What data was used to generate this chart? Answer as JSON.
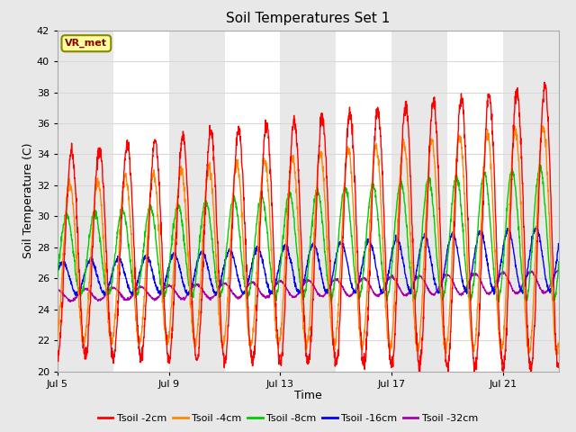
{
  "title": "Soil Temperatures Set 1",
  "xlabel": "Time",
  "ylabel": "Soil Temperature (C)",
  "ylim": [
    20,
    42
  ],
  "yticks": [
    20,
    22,
    24,
    26,
    28,
    30,
    32,
    34,
    36,
    38,
    40,
    42
  ],
  "xtick_labels": [
    "Jul 5",
    "Jul 9",
    "Jul 13",
    "Jul 17",
    "Jul 21"
  ],
  "annotation": "VR_met",
  "fig_bg": "#e8e8e8",
  "plot_bg": "#ffffff",
  "band_color": "#e8e8e8",
  "grid_color": "#d8d8d8",
  "legend": [
    "Tsoil -2cm",
    "Tsoil -4cm",
    "Tsoil -8cm",
    "Tsoil -16cm",
    "Tsoil -32cm"
  ],
  "colors": [
    "#ff0000",
    "#ff8800",
    "#00cc00",
    "#0000ff",
    "#aa00aa"
  ],
  "n_points": 2000
}
